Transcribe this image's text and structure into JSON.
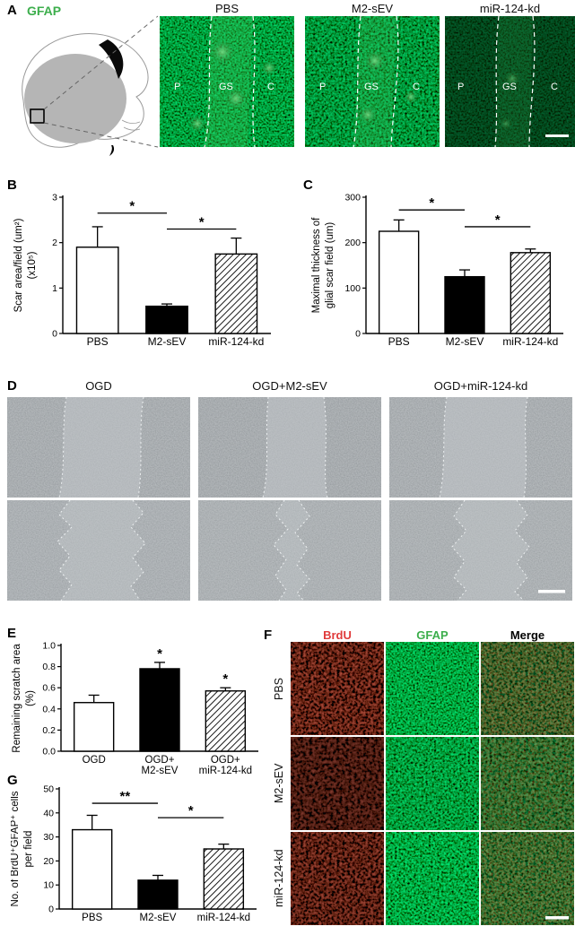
{
  "figure": {
    "panel_labels": {
      "A": "A",
      "B": "B",
      "C": "C",
      "D": "D",
      "E": "E",
      "F": "F",
      "G": "G"
    }
  },
  "panelA": {
    "stain_label": "GFAP",
    "image_titles": [
      "PBS",
      "M2-sEV",
      "miR-124-kd"
    ],
    "region_labels": [
      "P",
      "GS",
      "C"
    ]
  },
  "panelD": {
    "column_titles": [
      "OGD",
      "OGD+M2-sEV",
      "OGD+miR-124-kd"
    ]
  },
  "panelF": {
    "column_titles": [
      "BrdU",
      "GFAP",
      "Merge"
    ],
    "row_labels": [
      "PBS",
      "M2-sEV",
      "miR-124-kd"
    ]
  },
  "colors": {
    "gfap_green": "#3cae4c",
    "brdu_red": "#e03a3a",
    "merge_black": "#000000",
    "fluorescence_green": "#49c45f",
    "fluorescence_red": "#c22f1e"
  },
  "chart_data": [
    {
      "id": "B",
      "type": "bar",
      "categories": [
        "PBS",
        "M2-sEV",
        "miR-124-kd"
      ],
      "values": [
        1.9,
        0.6,
        1.75
      ],
      "errors": [
        0.45,
        0.05,
        0.35
      ],
      "bar_styles": [
        "white",
        "black",
        "hatch"
      ],
      "ylabel_lines": [
        "Scar area/field (um²)",
        "(x10⁵)"
      ],
      "ylim": [
        0,
        3
      ],
      "yticks": [
        0,
        1,
        2,
        3
      ],
      "ytick_labels": [
        "0",
        "1",
        "2",
        "3"
      ],
      "significance": [
        {
          "from": 0,
          "to": 1,
          "label": "*",
          "y": 2.65
        },
        {
          "from": 1,
          "to": 2,
          "label": "*",
          "y": 2.3
        }
      ]
    },
    {
      "id": "C",
      "type": "bar",
      "categories": [
        "PBS",
        "M2-sEV",
        "miR-124-kd"
      ],
      "values": [
        225,
        125,
        178
      ],
      "errors": [
        25,
        15,
        8
      ],
      "bar_styles": [
        "white",
        "black",
        "hatch"
      ],
      "ylabel_lines": [
        "Maximal thickness of",
        "glial scar field (um)"
      ],
      "ylim": [
        0,
        300
      ],
      "yticks": [
        0,
        100,
        200,
        300
      ],
      "ytick_labels": [
        "0",
        "100",
        "200",
        "300"
      ],
      "significance": [
        {
          "from": 0,
          "to": 1,
          "label": "*",
          "y": 272
        },
        {
          "from": 1,
          "to": 2,
          "label": "*",
          "y": 235
        }
      ]
    },
    {
      "id": "E",
      "type": "bar",
      "categories": [
        "OGD",
        "OGD+\nM2-sEV",
        "OGD+\nmiR-124-kd"
      ],
      "values": [
        0.46,
        0.78,
        0.57
      ],
      "errors": [
        0.07,
        0.06,
        0.03
      ],
      "bar_styles": [
        "white",
        "black",
        "hatch"
      ],
      "ylabel_lines": [
        "Remaining scratch area",
        "(%)"
      ],
      "ylim": [
        0,
        1.0
      ],
      "yticks": [
        0,
        0.2,
        0.4,
        0.6,
        0.8,
        1.0
      ],
      "ytick_labels": [
        "0.0",
        "0.2",
        "0.4",
        "0.6",
        "0.8",
        "1.0"
      ],
      "stars_above": [
        null,
        "*",
        "*"
      ]
    },
    {
      "id": "G",
      "type": "bar",
      "categories": [
        "PBS",
        "M2-sEV",
        "miR-124-kd"
      ],
      "values": [
        33,
        12,
        25
      ],
      "errors": [
        6,
        2,
        2
      ],
      "bar_styles": [
        "white",
        "black",
        "hatch"
      ],
      "ylabel_lines": [
        "No. of BrdU⁺GFAP⁺ cells",
        "per field"
      ],
      "ylim": [
        0,
        50
      ],
      "yticks": [
        0,
        10,
        20,
        30,
        40,
        50
      ],
      "ytick_labels": [
        "0",
        "10",
        "20",
        "30",
        "40",
        "50"
      ],
      "significance": [
        {
          "from": 0,
          "to": 1,
          "label": "**",
          "y": 44
        },
        {
          "from": 1,
          "to": 2,
          "label": "*",
          "y": 38
        }
      ]
    }
  ]
}
